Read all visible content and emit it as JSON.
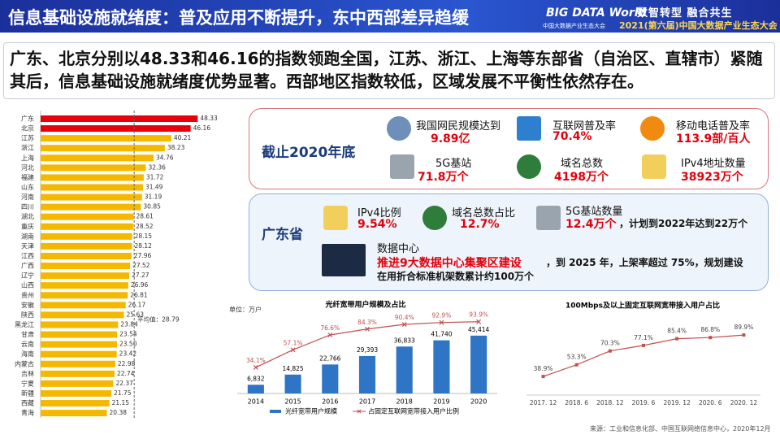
{
  "header": {
    "title": "信息基础设施就绪度：普及应用不断提升，东中西部差异趋缓",
    "logo": "BIG DATA World",
    "logo_sub": "中国大数据产业生态大会",
    "slogan": "数智转型 融合共生",
    "event": "2021(第六届)中国大数据产业生态大会"
  },
  "summary": "广东、北京分别以48.33和46.16的指数领跑全国，江苏、浙江、上海等东部省（自治区、直辖市）紧随其后，信息基础设施就绪度优势显著。西部地区指数较低，区域发展不平衡性依然存在。",
  "panels": [
    {
      "title": "截止2020年底",
      "items": [
        {
          "label": "我国网民规模达到",
          "value": "9.89亿"
        },
        {
          "label": "互联网普及率",
          "value": "70.4%"
        },
        {
          "label": "移动电话普及率",
          "value": "113.9部/百人"
        },
        {
          "label": "5G基站",
          "value": "71.8万个"
        },
        {
          "label": "域名总数",
          "value": "4198万个"
        },
        {
          "label": "IPv4地址数量",
          "value": "38923万个"
        }
      ]
    },
    {
      "title": "广东省",
      "items": [
        {
          "label": "IPv4比例",
          "value": "9.54%"
        },
        {
          "label": "域名总数占比",
          "value": "12.7%"
        },
        {
          "label": "5G基站数量",
          "value": "12.4万个",
          "note": "，计划到2022年达到22万个"
        }
      ],
      "datacenter": {
        "label": "数据中心",
        "highlight": "推进9大数据中心集聚区建设",
        "text": "，到 2025 年，上架率超过 75%，规划建设",
        "text2": "在用折合标准机架数累计约100万个"
      }
    }
  ],
  "chart_data": [
    {
      "type": "hbar",
      "categories": [
        "广东",
        "北京",
        "江苏",
        "浙江",
        "上海",
        "河北",
        "福建",
        "山东",
        "河南",
        "四川",
        "湖北",
        "重庆",
        "湖南",
        "天津",
        "江西",
        "广西",
        "辽宁",
        "山西",
        "贵州",
        "安徽",
        "陕西",
        "黑龙江",
        "甘肃",
        "云南",
        "海南",
        "内蒙古",
        "吉林",
        "宁夏",
        "新疆",
        "西藏",
        "青海"
      ],
      "values": [
        48.33,
        46.16,
        40.21,
        38.23,
        34.76,
        32.36,
        31.72,
        31.49,
        31.19,
        30.85,
        28.61,
        28.52,
        28.15,
        28.12,
        27.96,
        27.52,
        27.27,
        26.96,
        26.81,
        26.17,
        25.63,
        23.84,
        23.54,
        23.5,
        23.42,
        22.98,
        22.74,
        22.37,
        21.75,
        21.15,
        20.38
      ],
      "value_labels": [
        "48.33",
        "46.16",
        "40.21",
        "38.23",
        "34.76",
        "32.36",
        "31.72",
        "31.49",
        "31.19",
        "30.85",
        "28.61",
        "28.52",
        "28.15",
        "28.12",
        "27.96",
        "27.52",
        "27.27",
        "26.96",
        "26.81",
        "26.17",
        "25.63",
        "23.84",
        "23.54",
        "23.50",
        "23.42",
        "22.98",
        "22.74",
        "22.37",
        "21.75",
        "21.15",
        "20.38"
      ],
      "colors": [
        "#e8000b",
        "#e8000b",
        "#f5b800",
        "#f5b800",
        "#f5b800",
        "#f5b800",
        "#f5b800",
        "#f5b800",
        "#f5b800",
        "#f5b800",
        "#f5b800",
        "#f5b800",
        "#f5b800",
        "#f5b800",
        "#f5b800",
        "#f5b800",
        "#f5b800",
        "#f5b800",
        "#f5b800",
        "#f5b800",
        "#f5b800",
        "#f5b800",
        "#f5b800",
        "#f5b800",
        "#f5b800",
        "#f5b800",
        "#f5b800",
        "#f5b800",
        "#f5b800",
        "#f5b800",
        "#f5b800"
      ],
      "xlim": [
        0,
        50
      ],
      "reference_line": {
        "value": 28.79,
        "label": "平均值：28.79"
      }
    },
    {
      "type": "combo",
      "title": "光纤宽带用户规模及占比",
      "unit": "单位：万户",
      "categories": [
        "2014",
        "2015",
        "2016",
        "2017",
        "2018",
        "2019",
        "2020"
      ],
      "series": [
        {
          "name": "光纤宽带用户规模",
          "type": "bar",
          "color": "#2e75c6",
          "values": [
            6832,
            14825,
            22766,
            29393,
            36833,
            41740,
            45414
          ],
          "value_labels": [
            "6,832",
            "14,825",
            "22,766",
            "29,393",
            "36,833",
            "41,740",
            "45,414"
          ]
        },
        {
          "name": "占固定互联网宽带接入用户比例",
          "type": "line",
          "axis": "y2",
          "color": "#c0504d",
          "values": [
            34.1,
            57.1,
            76.6,
            84.3,
            90.4,
            92.9,
            93.9
          ],
          "value_labels": [
            "34.1%",
            "57.1%",
            "76.6%",
            "84.3%",
            "90.4%",
            "92.9%",
            "93.9%"
          ]
        }
      ],
      "ylim": [
        0,
        60000
      ],
      "y2lim": [
        0,
        100
      ]
    },
    {
      "type": "line",
      "title": "100Mbps及以上固定互联网宽带接入用户占比",
      "categories": [
        "2017. 12",
        "2018. 6",
        "2018. 12",
        "2019. 6",
        "2019. 12",
        "2020. 6",
        "2020. 12"
      ],
      "values": [
        38.9,
        53.3,
        70.3,
        77.1,
        85.4,
        86.8,
        89.9
      ],
      "value_labels": [
        "38.9%",
        "53.3%",
        "70.3%",
        "77.1%",
        "85.4%",
        "86.8%",
        "89.9%"
      ],
      "color": "#c0504d",
      "ylim": [
        20,
        100
      ]
    }
  ],
  "source": "来源：工业和信息化部、中国互联网络信息中心，2020年12月"
}
